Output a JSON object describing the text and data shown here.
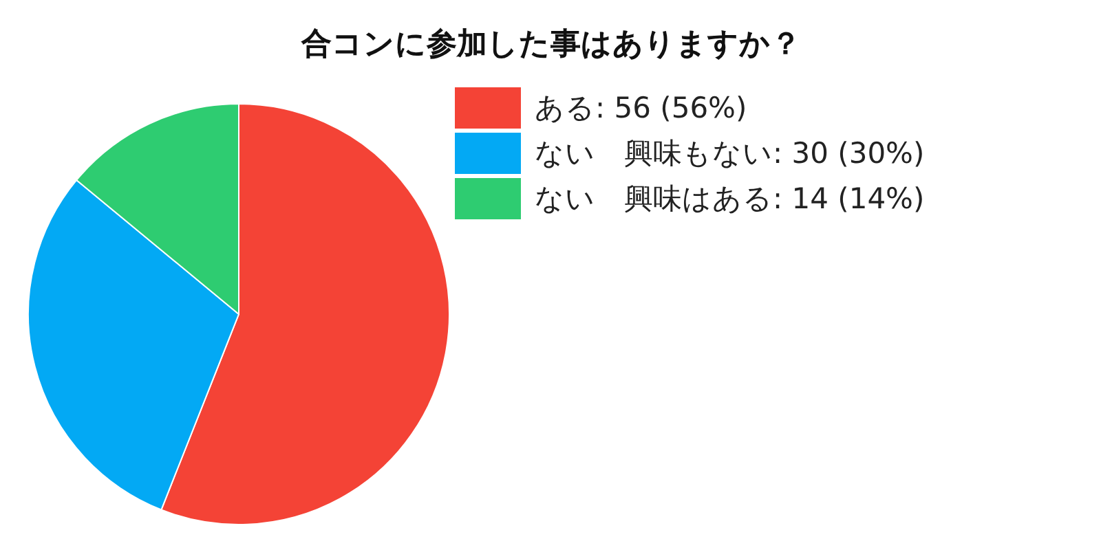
{
  "chart_data": {
    "type": "pie",
    "title": "合コンに参加した事はありますか？",
    "categories": [
      "ある",
      "ない　興味もない",
      "ない　興味はある"
    ],
    "values": [
      56,
      30,
      14
    ],
    "value_labels": [
      "56 (56%)",
      "30 (30%)",
      "14 (14%)"
    ],
    "colors": [
      "#f44336",
      "#03a9f4",
      "#2ecc71"
    ],
    "legend": "right"
  }
}
